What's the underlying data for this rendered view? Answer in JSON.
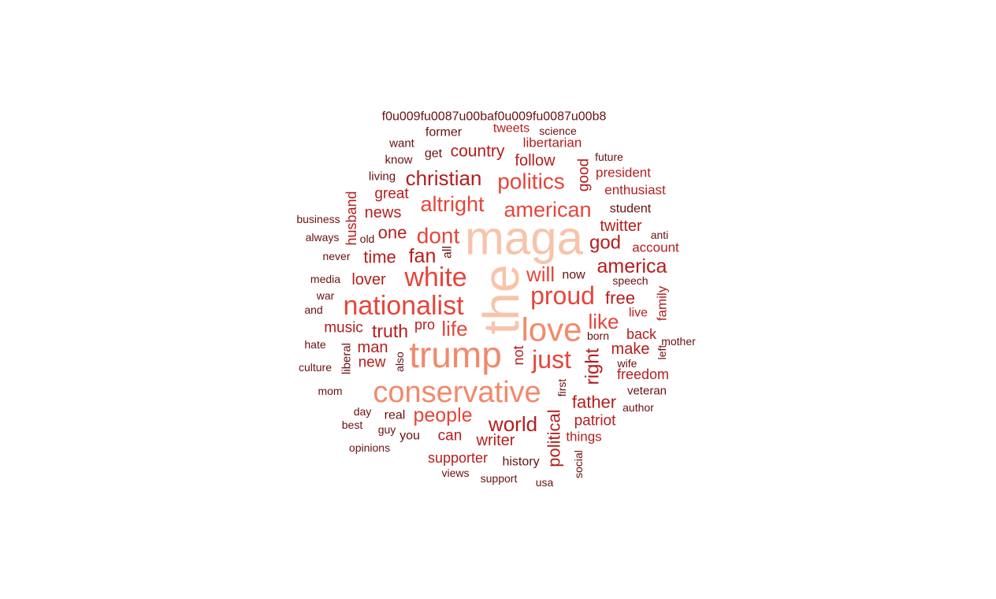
{
  "chart_data": {
    "type": "wordcloud",
    "title": "",
    "words": [
      {
        "text": "the",
        "weight": 100,
        "color": "#f7c4ab",
        "rotate": true
      },
      {
        "text": "maga",
        "weight": 94,
        "color": "#f7c4ab",
        "rotate": false
      },
      {
        "text": "trump",
        "weight": 82,
        "color": "#f2896b",
        "rotate": false
      },
      {
        "text": "love",
        "weight": 75,
        "color": "#f2896b",
        "rotate": false
      },
      {
        "text": "conservative",
        "weight": 72,
        "color": "#f2896b",
        "rotate": false
      },
      {
        "text": "nationalist",
        "weight": 62,
        "color": "#e6453a",
        "rotate": false
      },
      {
        "text": "white",
        "weight": 60,
        "color": "#e6453a",
        "rotate": false
      },
      {
        "text": "proud",
        "weight": 56,
        "color": "#e6453a",
        "rotate": false
      },
      {
        "text": "just",
        "weight": 54,
        "color": "#e6453a",
        "rotate": false
      },
      {
        "text": "politics",
        "weight": 48,
        "color": "#e6453a",
        "rotate": false
      },
      {
        "text": "american",
        "weight": 46,
        "color": "#e6453a",
        "rotate": false
      },
      {
        "text": "altright",
        "weight": 44,
        "color": "#e6453a",
        "rotate": false
      },
      {
        "text": "christian",
        "weight": 42,
        "color": "#b51d1d",
        "rotate": false
      },
      {
        "text": "world",
        "weight": 40,
        "color": "#b51d1d",
        "rotate": false
      },
      {
        "text": "people",
        "weight": 39,
        "color": "#e6453a",
        "rotate": false
      },
      {
        "text": "america",
        "weight": 38,
        "color": "#b51d1d",
        "rotate": false
      },
      {
        "text": "right",
        "weight": 38,
        "color": "#b51d1d",
        "rotate": true
      },
      {
        "text": "like",
        "weight": 37,
        "color": "#e6453a",
        "rotate": false
      },
      {
        "text": "dont",
        "weight": 37,
        "color": "#e6453a",
        "rotate": false
      },
      {
        "text": "will",
        "weight": 36,
        "color": "#e6453a",
        "rotate": false
      },
      {
        "text": "life",
        "weight": 36,
        "color": "#e6453a",
        "rotate": false
      },
      {
        "text": "political",
        "weight": 34,
        "color": "#b51d1d",
        "rotate": true
      },
      {
        "text": "fan",
        "weight": 33,
        "color": "#b51d1d",
        "rotate": false
      },
      {
        "text": "god",
        "weight": 33,
        "color": "#b51d1d",
        "rotate": false
      },
      {
        "text": "truth",
        "weight": 32,
        "color": "#b51d1d",
        "rotate": false
      },
      {
        "text": "father",
        "weight": 31,
        "color": "#b51d1d",
        "rotate": false
      },
      {
        "text": "one",
        "weight": 30,
        "color": "#b51d1d",
        "rotate": false
      },
      {
        "text": "time",
        "weight": 29,
        "color": "#b51d1d",
        "rotate": false
      },
      {
        "text": "free",
        "weight": 29,
        "color": "#b51d1d",
        "rotate": false
      },
      {
        "text": "country",
        "weight": 29,
        "color": "#b51d1d",
        "rotate": false
      },
      {
        "text": "twitter",
        "weight": 29,
        "color": "#b51d1d",
        "rotate": false
      },
      {
        "text": "follow",
        "weight": 28,
        "color": "#b51d1d",
        "rotate": false
      },
      {
        "text": "make",
        "weight": 28,
        "color": "#b51d1d",
        "rotate": false
      },
      {
        "text": "news",
        "weight": 28,
        "color": "#b51d1d",
        "rotate": false
      },
      {
        "text": "man",
        "weight": 28,
        "color": "#b51d1d",
        "rotate": false
      },
      {
        "text": "patriot",
        "weight": 27,
        "color": "#b51d1d",
        "rotate": false
      },
      {
        "text": "writer",
        "weight": 27,
        "color": "#b51d1d",
        "rotate": false
      },
      {
        "text": "lover",
        "weight": 26,
        "color": "#b51d1d",
        "rotate": false
      },
      {
        "text": "can",
        "weight": 26,
        "color": "#b51d1d",
        "rotate": false
      },
      {
        "text": "supporter",
        "weight": 26,
        "color": "#b51d1d",
        "rotate": false
      },
      {
        "text": "good",
        "weight": 26,
        "color": "#b51d1d",
        "rotate": true
      },
      {
        "text": "great",
        "weight": 25,
        "color": "#b51d1d",
        "rotate": false
      },
      {
        "text": "music",
        "weight": 25,
        "color": "#b51d1d",
        "rotate": false
      },
      {
        "text": "new",
        "weight": 25,
        "color": "#b51d1d",
        "rotate": false
      },
      {
        "text": "back",
        "weight": 25,
        "color": "#b51d1d",
        "rotate": false
      },
      {
        "text": "freedom",
        "weight": 25,
        "color": "#b51d1d",
        "rotate": false
      },
      {
        "text": "husband",
        "weight": 25,
        "color": "#b51d1d",
        "rotate": true
      },
      {
        "text": "family",
        "weight": 24,
        "color": "#b51d1d",
        "rotate": true
      },
      {
        "text": "pro",
        "weight": 24,
        "color": "#b51d1d",
        "rotate": false
      },
      {
        "text": "not",
        "weight": 24,
        "color": "#b51d1d",
        "rotate": true
      },
      {
        "text": "libertarian",
        "weight": 24,
        "color": "#b51d1d",
        "rotate": false
      },
      {
        "text": "president",
        "weight": 24,
        "color": "#b51d1d",
        "rotate": false
      },
      {
        "text": "things",
        "weight": 24,
        "color": "#b51d1d",
        "rotate": false
      },
      {
        "text": "tweets",
        "weight": 24,
        "color": "#b51d1d",
        "rotate": false
      },
      {
        "text": "enthusiast",
        "weight": 23,
        "color": "#b51d1d",
        "rotate": false
      },
      {
        "text": "account",
        "weight": 23,
        "color": "#b51d1d",
        "rotate": false
      },
      {
        "text": "live",
        "weight": 23,
        "color": "#b51d1d",
        "rotate": false
      },
      {
        "text": "former",
        "weight": 23,
        "color": "#6b0f0f",
        "rotate": false
      },
      {
        "text": "f0u009fu0087u00baf0u009fu0087u00b8",
        "weight": 23,
        "color": "#6b0f0f",
        "rotate": false
      },
      {
        "text": "history",
        "weight": 22,
        "color": "#6b0f0f",
        "rotate": false
      },
      {
        "text": "student",
        "weight": 22,
        "color": "#6b0f0f",
        "rotate": false
      },
      {
        "text": "now",
        "weight": 22,
        "color": "#6b0f0f",
        "rotate": false
      },
      {
        "text": "veteran",
        "weight": 22,
        "color": "#6b0f0f",
        "rotate": false
      },
      {
        "text": "liberal",
        "weight": 22,
        "color": "#6b0f0f",
        "rotate": true
      },
      {
        "text": "real",
        "weight": 22,
        "color": "#6b0f0f",
        "rotate": false
      },
      {
        "text": "get",
        "weight": 22,
        "color": "#6b0f0f",
        "rotate": false
      },
      {
        "text": "you",
        "weight": 22,
        "color": "#6b0f0f",
        "rotate": false
      },
      {
        "text": "all",
        "weight": 21,
        "color": "#6b0f0f",
        "rotate": true
      },
      {
        "text": "want",
        "weight": 21,
        "color": "#6b0f0f",
        "rotate": false
      },
      {
        "text": "know",
        "weight": 21,
        "color": "#6b0f0f",
        "rotate": false
      },
      {
        "text": "living",
        "weight": 21,
        "color": "#6b0f0f",
        "rotate": false
      },
      {
        "text": "views",
        "weight": 20,
        "color": "#6b0f0f",
        "rotate": false
      },
      {
        "text": "first",
        "weight": 20,
        "color": "#6b0f0f",
        "rotate": true
      },
      {
        "text": "media",
        "weight": 20,
        "color": "#6b0f0f",
        "rotate": false
      },
      {
        "text": "never",
        "weight": 20,
        "color": "#6b0f0f",
        "rotate": false
      },
      {
        "text": "speech",
        "weight": 20,
        "color": "#6b0f0f",
        "rotate": false
      },
      {
        "text": "also",
        "weight": 20,
        "color": "#6b0f0f",
        "rotate": true
      },
      {
        "text": "science",
        "weight": 20,
        "color": "#6b0f0f",
        "rotate": false
      },
      {
        "text": "future",
        "weight": 20,
        "color": "#6b0f0f",
        "rotate": false
      },
      {
        "text": "business",
        "weight": 20,
        "color": "#6b0f0f",
        "rotate": false
      },
      {
        "text": "always",
        "weight": 20,
        "color": "#6b0f0f",
        "rotate": false
      },
      {
        "text": "war",
        "weight": 20,
        "color": "#6b0f0f",
        "rotate": false
      },
      {
        "text": "and",
        "weight": 20,
        "color": "#6b0f0f",
        "rotate": false
      },
      {
        "text": "hate",
        "weight": 20,
        "color": "#6b0f0f",
        "rotate": false
      },
      {
        "text": "culture",
        "weight": 20,
        "color": "#6b0f0f",
        "rotate": false
      },
      {
        "text": "mom",
        "weight": 20,
        "color": "#6b0f0f",
        "rotate": false
      },
      {
        "text": "day",
        "weight": 20,
        "color": "#6b0f0f",
        "rotate": false
      },
      {
        "text": "best",
        "weight": 20,
        "color": "#6b0f0f",
        "rotate": false
      },
      {
        "text": "guy",
        "weight": 20,
        "color": "#6b0f0f",
        "rotate": false
      },
      {
        "text": "opinions",
        "weight": 20,
        "color": "#6b0f0f",
        "rotate": false
      },
      {
        "text": "support",
        "weight": 20,
        "color": "#6b0f0f",
        "rotate": false
      },
      {
        "text": "usa",
        "weight": 20,
        "color": "#6b0f0f",
        "rotate": false
      },
      {
        "text": "social",
        "weight": 20,
        "color": "#6b0f0f",
        "rotate": true
      },
      {
        "text": "author",
        "weight": 20,
        "color": "#6b0f0f",
        "rotate": false
      },
      {
        "text": "wife",
        "weight": 20,
        "color": "#6b0f0f",
        "rotate": false
      },
      {
        "text": "born",
        "weight": 20,
        "color": "#6b0f0f",
        "rotate": false
      },
      {
        "text": "mother",
        "weight": 20,
        "color": "#6b0f0f",
        "rotate": false
      },
      {
        "text": "left",
        "weight": 20,
        "color": "#6b0f0f",
        "rotate": true
      },
      {
        "text": "anti",
        "weight": 20,
        "color": "#6b0f0f",
        "rotate": false
      },
      {
        "text": "old",
        "weight": 20,
        "color": "#6b0f0f",
        "rotate": false
      }
    ]
  }
}
